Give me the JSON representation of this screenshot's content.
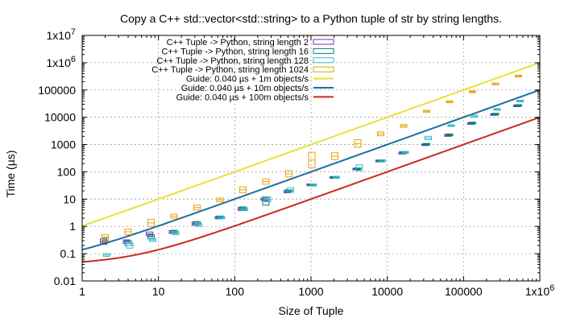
{
  "chart_data": {
    "type": "scatter",
    "title": "Copy a C++ std::vector<std::string> to a Python tuple of str by string lengths.",
    "xlabel": "Size of Tuple",
    "ylabel": "Time (µs)",
    "x_scale": "log",
    "y_scale": "log",
    "xlim": [
      1,
      1000000
    ],
    "ylim": [
      0.01,
      10000000
    ],
    "grid": true,
    "legend_position": "top-left",
    "x_ticks": [
      {
        "value": 1,
        "label": "1"
      },
      {
        "value": 10,
        "label": "10"
      },
      {
        "value": 100,
        "label": "100"
      },
      {
        "value": 1000,
        "label": "1000"
      },
      {
        "value": 10000,
        "label": "10000"
      },
      {
        "value": 100000,
        "label": "100000"
      },
      {
        "value": 1000000,
        "label": "1x10",
        "sup": "6"
      }
    ],
    "y_ticks": [
      {
        "value": 0.01,
        "label": "0.01"
      },
      {
        "value": 0.1,
        "label": "0.1"
      },
      {
        "value": 1,
        "label": "1"
      },
      {
        "value": 10,
        "label": "10"
      },
      {
        "value": 100,
        "label": "100"
      },
      {
        "value": 1000,
        "label": "1000"
      },
      {
        "value": 10000,
        "label": "10000"
      },
      {
        "value": 100000,
        "label": "100000"
      },
      {
        "value": 1000000,
        "label": "1x10",
        "sup": "6"
      },
      {
        "value": 10000000,
        "label": "1x10",
        "sup": "7"
      }
    ],
    "series": [
      {
        "name": "C++ Tuple -> Python, string length 2",
        "color": "#7b2fbf",
        "points": [
          {
            "x": 2,
            "low": 0.22,
            "high": 0.35
          },
          {
            "x": 4,
            "low": 0.24,
            "high": 0.32
          },
          {
            "x": 8,
            "low": 0.45,
            "high": 0.62
          },
          {
            "x": 16,
            "low": 0.55,
            "high": 0.7
          },
          {
            "x": 32,
            "low": 1.1,
            "high": 1.45
          },
          {
            "x": 64,
            "low": 1.9,
            "high": 2.3
          },
          {
            "x": 128,
            "low": 3.8,
            "high": 5.0
          },
          {
            "x": 256,
            "low": 9,
            "high": 11
          },
          {
            "x": 512,
            "low": 17,
            "high": 21
          },
          {
            "x": 1024,
            "low": 31,
            "high": 36
          },
          {
            "x": 2048,
            "low": 58,
            "high": 66
          },
          {
            "x": 4096,
            "low": 118,
            "high": 135
          },
          {
            "x": 8192,
            "low": 235,
            "high": 265
          },
          {
            "x": 16384,
            "low": 450,
            "high": 530
          },
          {
            "x": 32768,
            "low": 920,
            "high": 1050
          },
          {
            "x": 65536,
            "low": 2000,
            "high": 2350
          },
          {
            "x": 131072,
            "low": 5500,
            "high": 6300
          },
          {
            "x": 262144,
            "low": 12000,
            "high": 13500
          },
          {
            "x": 524288,
            "low": 25000,
            "high": 28000
          }
        ]
      },
      {
        "name": "C++ Tuple -> Python, string length 16",
        "color": "#00876a",
        "points": [
          {
            "x": 2,
            "low": 0.25,
            "high": 0.4
          },
          {
            "x": 4,
            "low": 0.2,
            "high": 0.3
          },
          {
            "x": 8,
            "low": 0.35,
            "high": 0.5
          },
          {
            "x": 16,
            "low": 0.55,
            "high": 0.72
          },
          {
            "x": 32,
            "low": 1.15,
            "high": 1.5
          },
          {
            "x": 64,
            "low": 2.0,
            "high": 2.4
          },
          {
            "x": 128,
            "low": 4.0,
            "high": 5.2
          },
          {
            "x": 256,
            "low": 6,
            "high": 12
          },
          {
            "x": 512,
            "low": 18,
            "high": 22
          },
          {
            "x": 1024,
            "low": 31,
            "high": 36
          },
          {
            "x": 2048,
            "low": 60,
            "high": 68
          },
          {
            "x": 4096,
            "low": 122,
            "high": 140
          },
          {
            "x": 8192,
            "low": 240,
            "high": 275
          },
          {
            "x": 16384,
            "low": 470,
            "high": 550
          },
          {
            "x": 32768,
            "low": 960,
            "high": 1100
          },
          {
            "x": 65536,
            "low": 2100,
            "high": 2450
          },
          {
            "x": 131072,
            "low": 5800,
            "high": 6600
          },
          {
            "x": 262144,
            "low": 12500,
            "high": 14000
          },
          {
            "x": 524288,
            "low": 26000,
            "high": 29000
          }
        ]
      },
      {
        "name": "C++ Tuple -> Python, string length 128",
        "color": "#33b8c8",
        "points": [
          {
            "x": 2,
            "low": 0.08,
            "high": 0.1
          },
          {
            "x": 4,
            "low": 0.16,
            "high": 0.25
          },
          {
            "x": 8,
            "low": 0.28,
            "high": 0.36
          },
          {
            "x": 16,
            "low": 0.5,
            "high": 0.65
          },
          {
            "x": 32,
            "low": 1.0,
            "high": 1.3
          },
          {
            "x": 64,
            "low": 1.9,
            "high": 2.3
          },
          {
            "x": 128,
            "low": 3.8,
            "high": 4.8
          },
          {
            "x": 256,
            "low": 8,
            "high": 12
          },
          {
            "x": 512,
            "low": 18,
            "high": 26
          },
          {
            "x": 1024,
            "low": 30,
            "high": 36
          },
          {
            "x": 2048,
            "low": 58,
            "high": 68
          },
          {
            "x": 4096,
            "low": 110,
            "high": 180
          },
          {
            "x": 8192,
            "low": 230,
            "high": 275
          },
          {
            "x": 16384,
            "low": 480,
            "high": 560
          },
          {
            "x": 32768,
            "low": 1500,
            "high": 2000
          },
          {
            "x": 65536,
            "low": 4600,
            "high": 5300
          },
          {
            "x": 131072,
            "low": 10000,
            "high": 12000
          },
          {
            "x": 262144,
            "low": 18000,
            "high": 21000
          },
          {
            "x": 524288,
            "low": 37000,
            "high": 42000
          }
        ]
      },
      {
        "name": "C++ Tuple -> Python, string length 1024",
        "color": "#e8a400",
        "points": [
          {
            "x": 2,
            "low": 0.3,
            "high": 0.5
          },
          {
            "x": 4,
            "low": 0.5,
            "high": 0.8
          },
          {
            "x": 8,
            "low": 1.0,
            "high": 1.8
          },
          {
            "x": 16,
            "low": 2.0,
            "high": 2.8
          },
          {
            "x": 32,
            "low": 4.0,
            "high": 6.0
          },
          {
            "x": 64,
            "low": 8,
            "high": 11
          },
          {
            "x": 128,
            "low": 17,
            "high": 28
          },
          {
            "x": 256,
            "low": 35,
            "high": 55
          },
          {
            "x": 512,
            "low": 65,
            "high": 110
          },
          {
            "x": 1024,
            "low": 140,
            "high": 520
          },
          {
            "x": 2048,
            "low": 280,
            "high": 500
          },
          {
            "x": 4096,
            "low": 800,
            "high": 1500
          },
          {
            "x": 8192,
            "low": 2100,
            "high": 2900
          },
          {
            "x": 16384,
            "low": 4300,
            "high": 5400
          },
          {
            "x": 32768,
            "low": 15000,
            "high": 18000
          },
          {
            "x": 65536,
            "low": 34000,
            "high": 40000
          },
          {
            "x": 131072,
            "low": 80000,
            "high": 92000
          },
          {
            "x": 262144,
            "low": 155000,
            "high": 180000
          },
          {
            "x": 524288,
            "low": 300000,
            "high": 345000
          }
        ]
      }
    ],
    "guides": [
      {
        "name": "Guide: 0.040 µs + 1m objects/s",
        "color": "#e8e03a",
        "overhead": 0.04,
        "rate": 1000000
      },
      {
        "name": "Guide: 0.040 µs + 10m objects/s",
        "color": "#1c6f9f",
        "overhead": 0.04,
        "rate": 10000000
      },
      {
        "name": "Guide: 0.040 µs + 100m objects/s",
        "color": "#cc2a1a",
        "overhead": 0.04,
        "rate": 100000000
      }
    ]
  }
}
